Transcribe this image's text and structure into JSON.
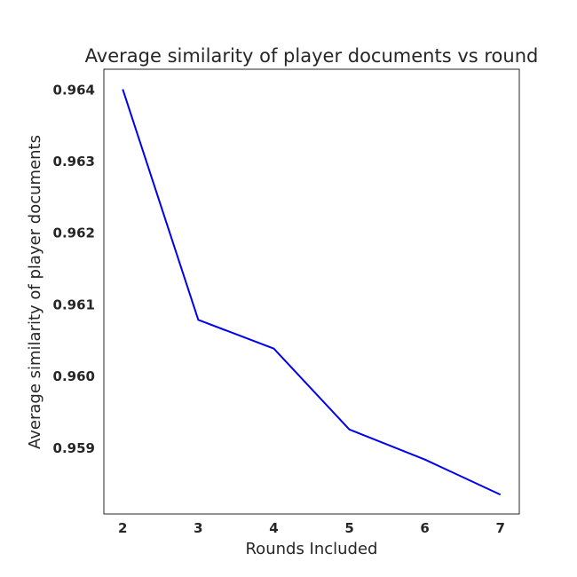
{
  "chart_data": {
    "type": "line",
    "title": "Average similarity of player documents vs round",
    "xlabel": "Rounds Included",
    "ylabel": "Average similarity of player documents",
    "x": [
      2,
      3,
      4,
      5,
      6,
      7
    ],
    "series": [
      {
        "values": [
          0.96401,
          0.96079,
          0.96039,
          0.95926,
          0.95884,
          0.95835
        ],
        "color": "#0000ee"
      }
    ],
    "xticks": [
      "2",
      "3",
      "4",
      "5",
      "6",
      "7"
    ],
    "yticks": [
      "0.959",
      "0.960",
      "0.961",
      "0.962",
      "0.963",
      "0.964"
    ],
    "xlim": [
      1.75,
      7.25
    ],
    "ylim": [
      0.95808,
      0.96429
    ],
    "grid": false,
    "legend": "none"
  }
}
